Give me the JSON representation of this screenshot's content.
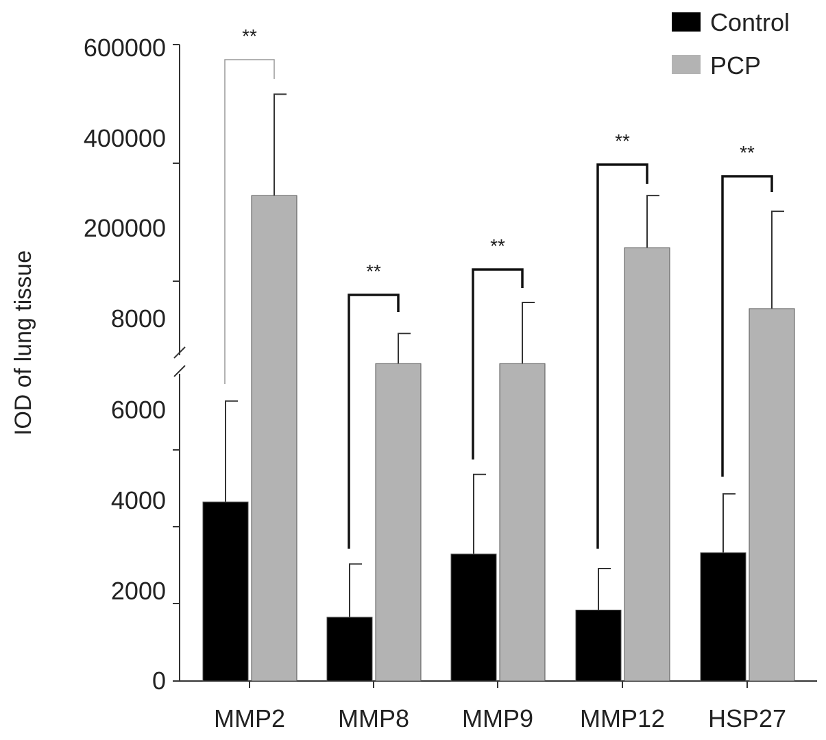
{
  "chart_data": {
    "type": "bar",
    "title": "",
    "xlabel": "",
    "ylabel": "IOD of lung tissue",
    "y_axis_break": true,
    "y_tick_labels": [
      "0",
      "2000",
      "4000",
      "6000",
      "8000",
      "200000",
      "400000",
      "600000"
    ],
    "y_tick_values": [
      0,
      2000,
      4000,
      6000,
      8000,
      200000,
      400000,
      600000
    ],
    "categories": [
      "MMP2",
      "MMP8",
      "MMP9",
      "MMP12",
      "HSP27"
    ],
    "series": [
      {
        "name": "Control",
        "color": "#000000",
        "values": [
          3970,
          1420,
          2820,
          1580,
          2850
        ],
        "error_upper": [
          6200,
          2600,
          4580,
          2500,
          4150
        ]
      },
      {
        "name": "PCP",
        "color": "#b3b3b3",
        "values": [
          273000,
          7020,
          7020,
          159000,
          29800
        ],
        "error_upper": [
          498000,
          7680,
          42900,
          273000,
          238000
        ]
      }
    ],
    "significance": [
      {
        "category": "MMP2",
        "label": "**"
      },
      {
        "category": "MMP8",
        "label": "**"
      },
      {
        "category": "MMP9",
        "label": "**"
      },
      {
        "category": "MMP12",
        "label": "**"
      },
      {
        "category": "HSP27",
        "label": "**"
      }
    ],
    "legend": {
      "placement": "top-right",
      "entries": [
        "Control",
        "PCP"
      ]
    }
  }
}
